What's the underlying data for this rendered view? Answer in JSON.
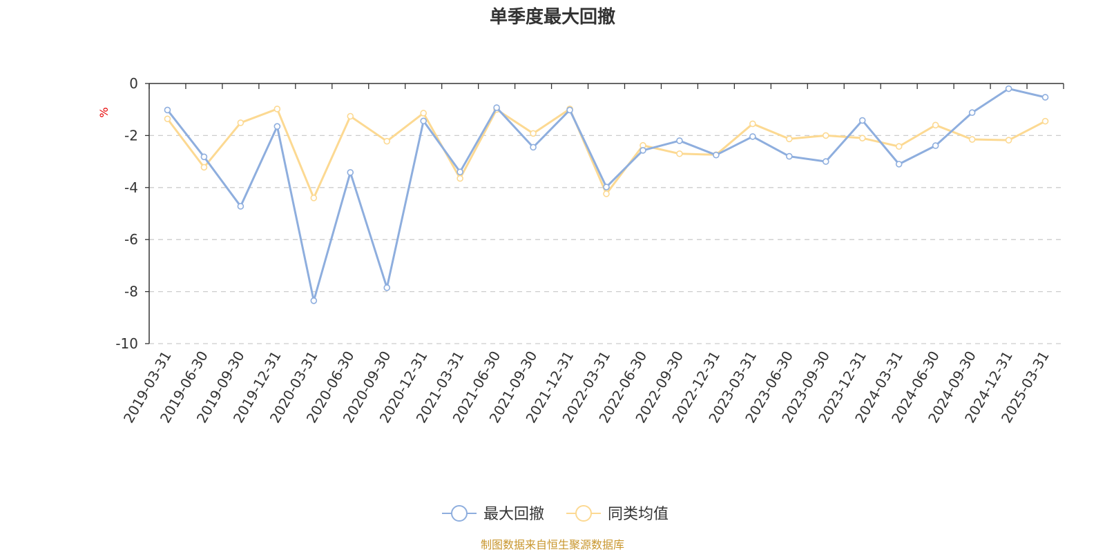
{
  "chart_data": {
    "type": "line",
    "title": "单季度最大回撤",
    "ylabel": "%",
    "ylim": [
      -10,
      0
    ],
    "yticks": [
      0,
      -2,
      -4,
      -6,
      -8,
      -10
    ],
    "grid": true,
    "legend_position": "bottom",
    "categories": [
      "2019-03-31",
      "2019-06-30",
      "2019-09-30",
      "2019-12-31",
      "2020-03-31",
      "2020-06-30",
      "2020-09-30",
      "2020-12-31",
      "2021-03-31",
      "2021-06-30",
      "2021-09-30",
      "2021-12-31",
      "2022-03-31",
      "2022-06-30",
      "2022-09-30",
      "2022-12-31",
      "2023-03-31",
      "2023-06-30",
      "2023-09-30",
      "2023-12-31",
      "2024-03-31",
      "2024-06-30",
      "2024-09-30",
      "2024-12-31",
      "2025-03-31"
    ],
    "series": [
      {
        "name": "最大回撤",
        "color": "#8eaede",
        "values": [
          -1.02,
          -2.82,
          -4.72,
          -1.65,
          -8.35,
          -3.42,
          -7.85,
          -1.44,
          -3.4,
          -0.93,
          -2.45,
          -1.02,
          -3.98,
          -2.57,
          -2.2,
          -2.75,
          -2.04,
          -2.8,
          -3.0,
          -1.42,
          -3.1,
          -2.39,
          -1.12,
          -0.2,
          -0.53
        ]
      },
      {
        "name": "同类均值",
        "color": "#fcd992",
        "values": [
          -1.36,
          -3.22,
          -1.51,
          -0.98,
          -4.4,
          -1.26,
          -2.22,
          -1.14,
          -3.65,
          -1.0,
          -1.92,
          -0.98,
          -4.24,
          -2.38,
          -2.7,
          -2.74,
          -1.55,
          -2.13,
          -2.0,
          -2.1,
          -2.42,
          -1.6,
          -2.15,
          -2.18,
          -1.45
        ]
      }
    ],
    "source": "制图数据来自恒生聚源数据库"
  }
}
